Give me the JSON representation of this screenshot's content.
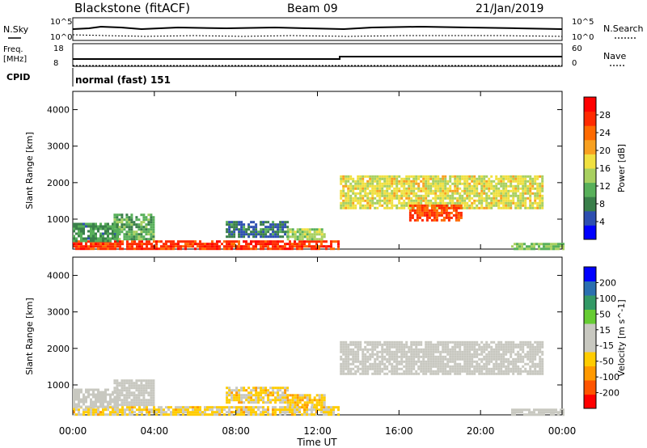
{
  "header": {
    "station": "Blackstone (fitACF)",
    "beam": "Beam 09",
    "date": "21/Jan/2019"
  },
  "noise_panel": {
    "left_label": "N.Sky",
    "right_label": "N.Search",
    "tick_top": "10^5",
    "tick_bottom": "10^0"
  },
  "freq_panel": {
    "left_label_line1": "Freq.",
    "left_label_line2": "[MHz]",
    "right_label": "Nave",
    "left_ticks": [
      "18",
      "8"
    ],
    "right_ticks": [
      "60",
      "0"
    ]
  },
  "cpid_panel": {
    "label": "CPID",
    "mode_text": "normal (fast) 151"
  },
  "colors": {
    "power_scale": [
      "#0000ff",
      "#2e4fb0",
      "#3a7f4a",
      "#58b05a",
      "#a8d060",
      "#f0e040",
      "#f8a020",
      "#ff6a00",
      "#ff2a00",
      "#ff0000"
    ],
    "velocity_scale": [
      "#ff0000",
      "#ff5500",
      "#ff9900",
      "#ffcc00",
      "#c8c8c0",
      "#c8c8c0",
      "#66cc33",
      "#339966",
      "#2a6fb0",
      "#0000ff"
    ]
  },
  "chart_data": [
    {
      "type": "heatmap",
      "panel": "power",
      "ylabel": "Slant Range [km]",
      "xlabel": "Time UT",
      "x_ticks": [
        "00:00",
        "04:00",
        "08:00",
        "12:00",
        "16:00",
        "20:00",
        "00:00"
      ],
      "y_ticks": [
        "1000",
        "2000",
        "3000",
        "4000"
      ],
      "ylim": [
        180,
        4500
      ],
      "xlim_hours": [
        0,
        24
      ],
      "colorbar": {
        "label": "Power [dB]",
        "ticks": [
          "4",
          "8",
          "12",
          "16",
          "20",
          "24",
          "28"
        ],
        "range": [
          0,
          32
        ]
      },
      "regions": [
        {
          "t0": 0.0,
          "t1": 13.0,
          "r0": 180,
          "r1": 420,
          "value": 27
        },
        {
          "t0": 0.0,
          "t1": 2.2,
          "r0": 420,
          "r1": 900,
          "value": 9
        },
        {
          "t0": 2.0,
          "t1": 4.0,
          "r0": 450,
          "r1": 1150,
          "value": 11
        },
        {
          "t0": 7.5,
          "t1": 10.5,
          "r0": 550,
          "r1": 950,
          "value": 7
        },
        {
          "t0": 10.5,
          "t1": 12.3,
          "r0": 450,
          "r1": 750,
          "value": 14
        },
        {
          "t0": 13.1,
          "t1": 23.0,
          "r0": 1300,
          "r1": 2200,
          "value": 17
        },
        {
          "t0": 16.5,
          "t1": 19.0,
          "r0": 1000,
          "r1": 1400,
          "value": 26
        },
        {
          "t0": 21.5,
          "t1": 24.0,
          "r0": 180,
          "r1": 350,
          "value": 13
        }
      ]
    },
    {
      "type": "heatmap",
      "panel": "velocity",
      "ylabel": "Slant Range [km]",
      "xlabel": "Time UT",
      "x_ticks": [
        "00:00",
        "04:00",
        "08:00",
        "12:00",
        "16:00",
        "20:00",
        "00:00"
      ],
      "y_ticks": [
        "1000",
        "2000",
        "3000",
        "4000"
      ],
      "ylim": [
        180,
        4500
      ],
      "xlim_hours": [
        0,
        24
      ],
      "colorbar": {
        "label": "Velocity [m s^-1]",
        "ticks": [
          "200",
          "100",
          "50",
          "15",
          "-15",
          "-50",
          "-100",
          "-200"
        ],
        "range": [
          -250,
          250
        ]
      },
      "regions": [
        {
          "t0": 0.0,
          "t1": 13.0,
          "r0": 180,
          "r1": 420,
          "value": -60
        },
        {
          "t0": 0.0,
          "t1": 2.2,
          "r0": 420,
          "r1": 900,
          "value": 0
        },
        {
          "t0": 2.0,
          "t1": 4.0,
          "r0": 450,
          "r1": 1150,
          "value": 0
        },
        {
          "t0": 7.5,
          "t1": 10.5,
          "r0": 550,
          "r1": 950,
          "value": -60
        },
        {
          "t0": 10.5,
          "t1": 12.3,
          "r0": 450,
          "r1": 750,
          "value": -70
        },
        {
          "t0": 13.1,
          "t1": 23.0,
          "r0": 1300,
          "r1": 2200,
          "value": 0
        },
        {
          "t0": 21.5,
          "t1": 24.0,
          "r0": 180,
          "r1": 350,
          "value": 0
        }
      ]
    }
  ]
}
